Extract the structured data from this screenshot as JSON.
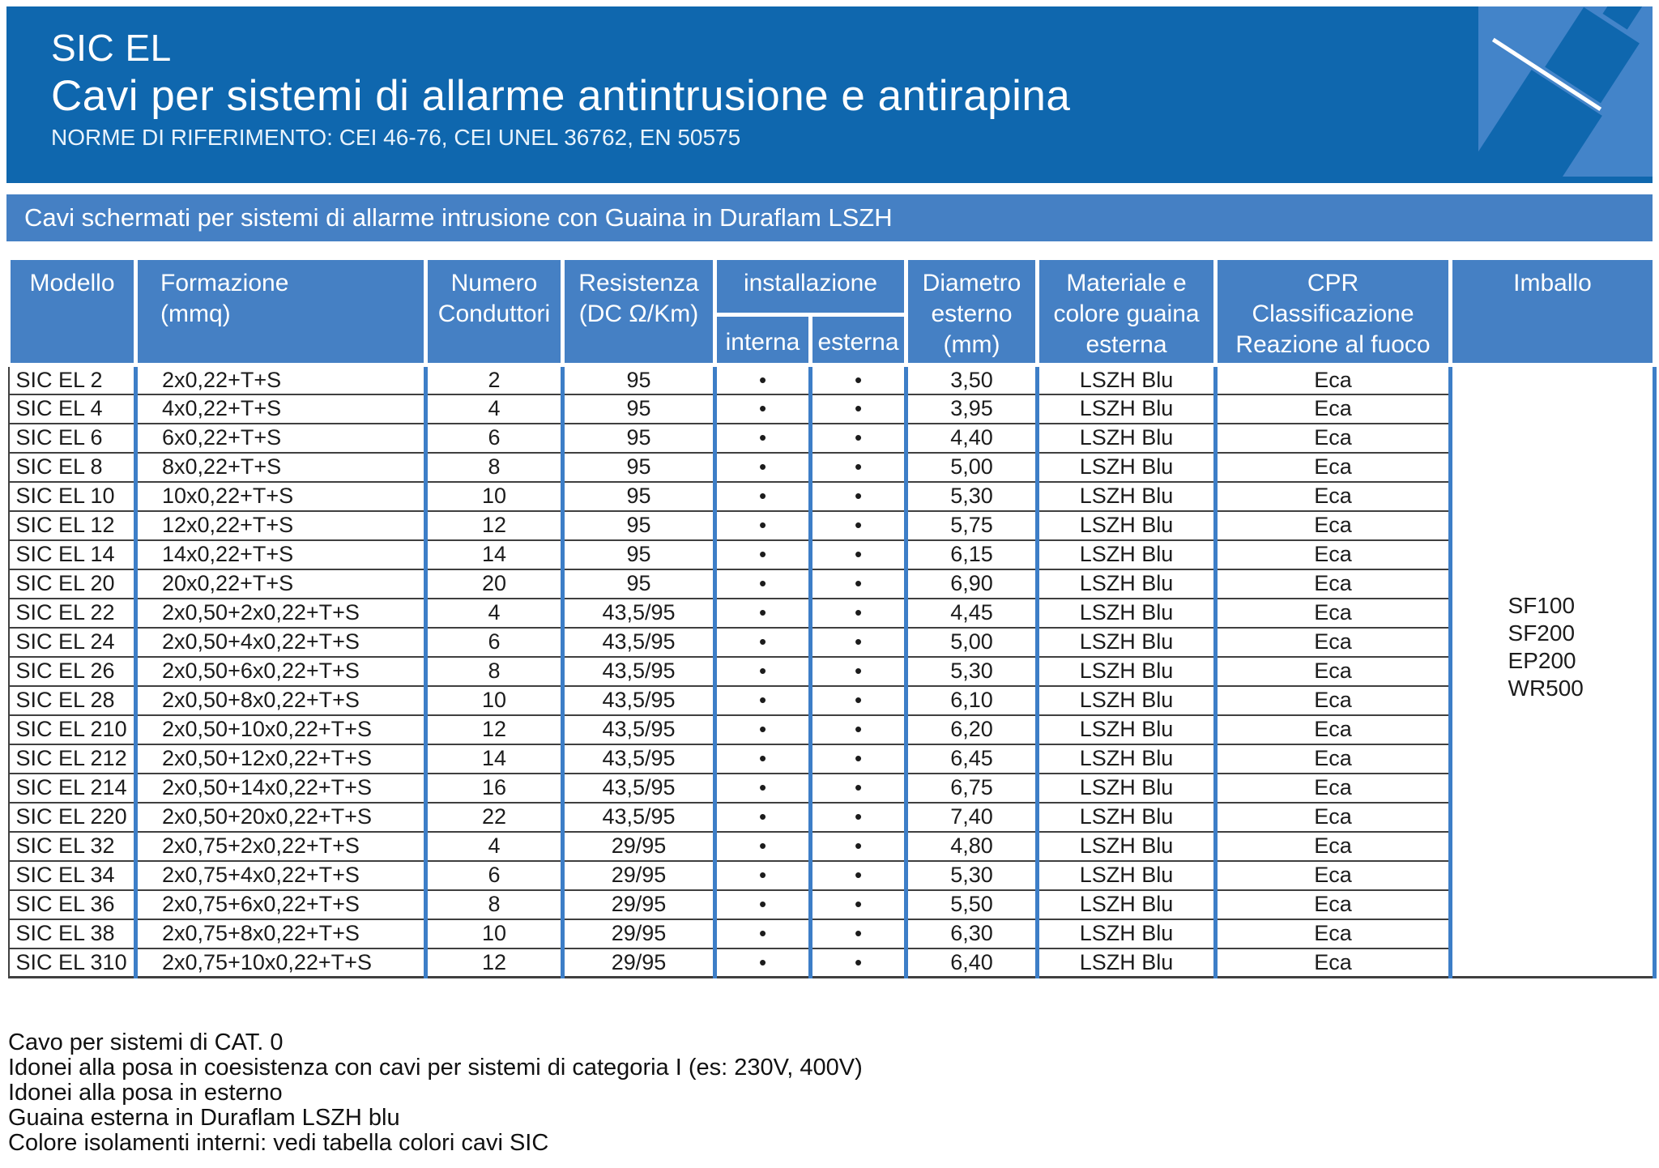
{
  "banner": {
    "product_code": "SIC EL",
    "title": "Cavi per sistemi di allarme antintrusione e antirapina",
    "norms": "NORME DI RIFERIMENTO: CEI 46-76, CEI UNEL 36762, EN 50575"
  },
  "section_banner": "Cavi schermati per sistemi di allarme intrusione con Guaina in Duraflam LSZH",
  "table": {
    "headers": {
      "modello": "Modello",
      "formazione": "Formazione\n(mmq)",
      "numero": "Numero\nConduttori",
      "resistenza": "Resistenza\n(DC Ω/Km)",
      "installazione": "installazione",
      "interna": "interna",
      "esterna": "esterna",
      "diametro": "Diametro\nesterno\n(mm)",
      "materiale": "Materiale e\ncolore guaina\nesterna",
      "cpr": "CPR\nClassificazione\nReazione al fuoco",
      "imballo": "Imballo"
    },
    "rows": [
      {
        "model": "SIC EL 2",
        "formation": "2x0,22+T+S",
        "conductors": "2",
        "resistance": "95",
        "interna": "•",
        "esterna": "•",
        "diameter": "3,50",
        "material": "LSZH Blu",
        "cpr": "Eca"
      },
      {
        "model": "SIC EL 4",
        "formation": "4x0,22+T+S",
        "conductors": "4",
        "resistance": "95",
        "interna": "•",
        "esterna": "•",
        "diameter": "3,95",
        "material": "LSZH Blu",
        "cpr": "Eca"
      },
      {
        "model": "SIC EL 6",
        "formation": "6x0,22+T+S",
        "conductors": "6",
        "resistance": "95",
        "interna": "•",
        "esterna": "•",
        "diameter": "4,40",
        "material": "LSZH Blu",
        "cpr": "Eca"
      },
      {
        "model": "SIC EL 8",
        "formation": "8x0,22+T+S",
        "conductors": "8",
        "resistance": "95",
        "interna": "•",
        "esterna": "•",
        "diameter": "5,00",
        "material": "LSZH Blu",
        "cpr": "Eca"
      },
      {
        "model": "SIC EL 10",
        "formation": "10x0,22+T+S",
        "conductors": "10",
        "resistance": "95",
        "interna": "•",
        "esterna": "•",
        "diameter": "5,30",
        "material": "LSZH Blu",
        "cpr": "Eca"
      },
      {
        "model": "SIC EL 12",
        "formation": "12x0,22+T+S",
        "conductors": "12",
        "resistance": "95",
        "interna": "•",
        "esterna": "•",
        "diameter": "5,75",
        "material": "LSZH Blu",
        "cpr": "Eca"
      },
      {
        "model": "SIC EL 14",
        "formation": "14x0,22+T+S",
        "conductors": "14",
        "resistance": "95",
        "interna": "•",
        "esterna": "•",
        "diameter": "6,15",
        "material": "LSZH Blu",
        "cpr": "Eca"
      },
      {
        "model": "SIC EL 20",
        "formation": "20x0,22+T+S",
        "conductors": "20",
        "resistance": "95",
        "interna": "•",
        "esterna": "•",
        "diameter": "6,90",
        "material": "LSZH Blu",
        "cpr": "Eca"
      },
      {
        "model": "SIC EL 22",
        "formation": "2x0,50+2x0,22+T+S",
        "conductors": "4",
        "resistance": "43,5/95",
        "interna": "•",
        "esterna": "•",
        "diameter": "4,45",
        "material": "LSZH Blu",
        "cpr": "Eca"
      },
      {
        "model": "SIC EL 24",
        "formation": "2x0,50+4x0,22+T+S",
        "conductors": "6",
        "resistance": "43,5/95",
        "interna": "•",
        "esterna": "•",
        "diameter": "5,00",
        "material": "LSZH Blu",
        "cpr": "Eca"
      },
      {
        "model": "SIC EL 26",
        "formation": "2x0,50+6x0,22+T+S",
        "conductors": "8",
        "resistance": "43,5/95",
        "interna": "•",
        "esterna": "•",
        "diameter": "5,30",
        "material": "LSZH Blu",
        "cpr": "Eca"
      },
      {
        "model": "SIC EL 28",
        "formation": "2x0,50+8x0,22+T+S",
        "conductors": "10",
        "resistance": "43,5/95",
        "interna": "•",
        "esterna": "•",
        "diameter": "6,10",
        "material": "LSZH Blu",
        "cpr": "Eca"
      },
      {
        "model": "SIC EL 210",
        "formation": "2x0,50+10x0,22+T+S",
        "conductors": "12",
        "resistance": "43,5/95",
        "interna": "•",
        "esterna": "•",
        "diameter": "6,20",
        "material": "LSZH Blu",
        "cpr": "Eca"
      },
      {
        "model": "SIC EL 212",
        "formation": "2x0,50+12x0,22+T+S",
        "conductors": "14",
        "resistance": "43,5/95",
        "interna": "•",
        "esterna": "•",
        "diameter": "6,45",
        "material": "LSZH Blu",
        "cpr": "Eca"
      },
      {
        "model": "SIC EL 214",
        "formation": "2x0,50+14x0,22+T+S",
        "conductors": "16",
        "resistance": "43,5/95",
        "interna": "•",
        "esterna": "•",
        "diameter": "6,75",
        "material": "LSZH Blu",
        "cpr": "Eca"
      },
      {
        "model": "SIC EL 220",
        "formation": "2x0,50+20x0,22+T+S",
        "conductors": "22",
        "resistance": "43,5/95",
        "interna": "•",
        "esterna": "•",
        "diameter": "7,40",
        "material": "LSZH Blu",
        "cpr": "Eca"
      },
      {
        "model": "SIC EL 32",
        "formation": "2x0,75+2x0,22+T+S",
        "conductors": "4",
        "resistance": "29/95",
        "interna": "•",
        "esterna": "•",
        "diameter": "4,80",
        "material": "LSZH Blu",
        "cpr": "Eca"
      },
      {
        "model": "SIC EL 34",
        "formation": "2x0,75+4x0,22+T+S",
        "conductors": "6",
        "resistance": "29/95",
        "interna": "•",
        "esterna": "•",
        "diameter": "5,30",
        "material": "LSZH Blu",
        "cpr": "Eca"
      },
      {
        "model": "SIC EL 36",
        "formation": "2x0,75+6x0,22+T+S",
        "conductors": "8",
        "resistance": "29/95",
        "interna": "•",
        "esterna": "•",
        "diameter": "5,50",
        "material": "LSZH Blu",
        "cpr": "Eca"
      },
      {
        "model": "SIC EL 38",
        "formation": "2x0,75+8x0,22+T+S",
        "conductors": "10",
        "resistance": "29/95",
        "interna": "•",
        "esterna": "•",
        "diameter": "6,30",
        "material": "LSZH Blu",
        "cpr": "Eca"
      },
      {
        "model": "SIC EL 310",
        "formation": "2x0,75+10x0,22+T+S",
        "conductors": "12",
        "resistance": "29/95",
        "interna": "•",
        "esterna": "•",
        "diameter": "6,40",
        "material": "LSZH Blu",
        "cpr": "Eca"
      }
    ],
    "imballo": [
      "SF100",
      "SF200",
      "EP200",
      "WR500"
    ]
  },
  "notes": [
    "Cavo per sistemi di CAT. 0",
    "Idonei alla posa in coesistenza con cavi per sistemi di categoria I (es: 230V, 400V)",
    "Idonei alla posa in esterno",
    "Guaina esterna in Duraflam LSZH blu",
    "Colore isolamenti interni: vedi tabella colori cavi SIC"
  ],
  "colors": {
    "banner_blue": "#0f67ae",
    "header_blue": "#4580c4",
    "divider_blue": "#3d7ec7",
    "logo_blue": "#4384c9"
  }
}
